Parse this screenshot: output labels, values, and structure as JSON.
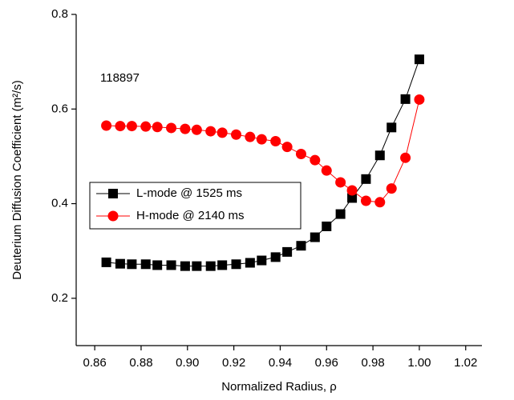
{
  "chart_data": {
    "type": "line",
    "xlabel": "Normalized Radius, ρ",
    "ylabel": "Deuterium Diffusion Coefficient (m²/s)",
    "annotation": "118897",
    "x": [
      0.865,
      0.871,
      0.876,
      0.882,
      0.887,
      0.893,
      0.899,
      0.904,
      0.91,
      0.915,
      0.921,
      0.927,
      0.932,
      0.938,
      0.943,
      0.949,
      0.955,
      0.96,
      0.966,
      0.971,
      0.977,
      0.983,
      0.988,
      0.994,
      1.0
    ],
    "series": [
      {
        "name": "L-mode @ 1525 ms",
        "color": "#000000",
        "marker": "square",
        "values": [
          0.276,
          0.273,
          0.272,
          0.272,
          0.27,
          0.27,
          0.268,
          0.268,
          0.268,
          0.27,
          0.272,
          0.275,
          0.28,
          0.287,
          0.298,
          0.311,
          0.329,
          0.352,
          0.378,
          0.412,
          0.452,
          0.502,
          0.561,
          0.621,
          0.705
        ]
      },
      {
        "name": "H-mode @ 2140 ms",
        "color": "#ff0000",
        "marker": "circle",
        "values": [
          0.565,
          0.564,
          0.564,
          0.563,
          0.562,
          0.56,
          0.558,
          0.556,
          0.553,
          0.55,
          0.546,
          0.541,
          0.536,
          0.532,
          0.52,
          0.505,
          0.492,
          0.47,
          0.445,
          0.428,
          0.406,
          0.403,
          0.432,
          0.497,
          0.62
        ]
      }
    ],
    "xlim": [
      0.852,
      1.027
    ],
    "ylim": [
      0.1,
      0.8
    ],
    "xticks": [
      {
        "value": 0.86,
        "label": "0.86"
      },
      {
        "value": 0.88,
        "label": "0.88"
      },
      {
        "value": 0.9,
        "label": "0.90"
      },
      {
        "value": 0.92,
        "label": "0.92"
      },
      {
        "value": 0.94,
        "label": "0.94"
      },
      {
        "value": 0.96,
        "label": "0.96"
      },
      {
        "value": 0.98,
        "label": "0.98"
      },
      {
        "value": 1.0,
        "label": "1.00"
      },
      {
        "value": 1.02,
        "label": "1.02"
      }
    ],
    "yticks": [
      0.2,
      0.4,
      0.6,
      0.8
    ],
    "legend": "left",
    "grid": false
  }
}
